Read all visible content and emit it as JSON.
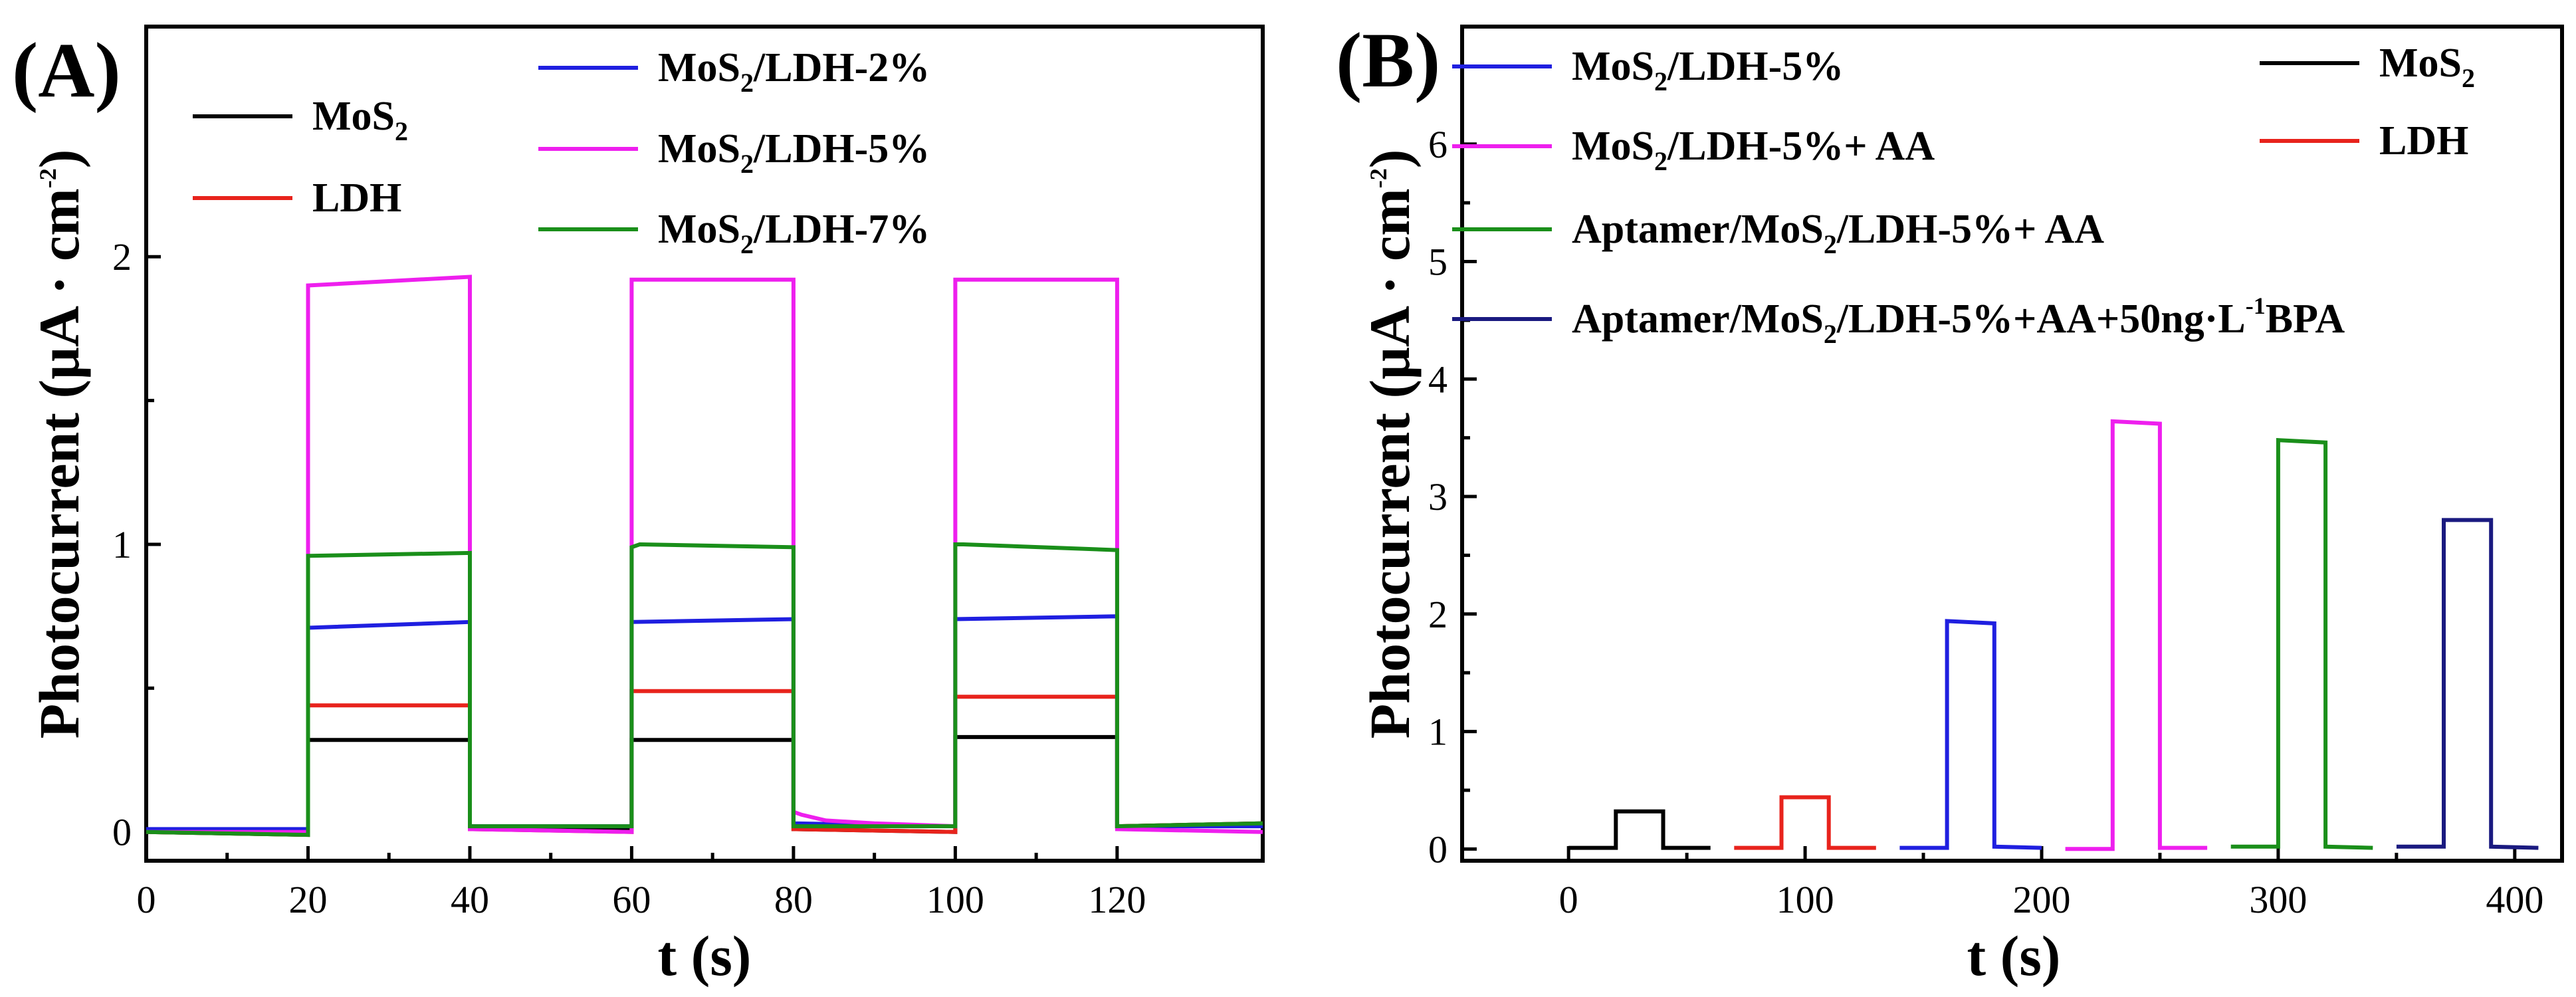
{
  "chart_data": [
    {
      "type": "line",
      "panel_label": "(A)",
      "xlabel": "t (s)",
      "ylabel": "Photocurrent (μA · cm",
      "ylabel_sup": "-2",
      "ylabel_close": ")",
      "xlim": [
        0,
        138
      ],
      "ylim": [
        -0.1,
        2.8
      ],
      "xticks": [
        0,
        20,
        40,
        60,
        80,
        100,
        120
      ],
      "yticks": [
        0,
        1,
        2
      ],
      "grid": false,
      "series": [
        {
          "name": "MoS2",
          "color": "#000000",
          "x": [
            0,
            20,
            20,
            40,
            40,
            60,
            60,
            80,
            80,
            100,
            100,
            120,
            120,
            138
          ],
          "y": [
            0,
            -0.01,
            0.32,
            0.32,
            0.02,
            0.01,
            0.32,
            0.32,
            0.01,
            0.0,
            0.33,
            0.33,
            0.02,
            0.03
          ]
        },
        {
          "name": "LDH",
          "color": "#e8231c",
          "x": [
            0,
            20,
            20,
            40,
            40,
            60,
            60,
            80,
            80,
            100,
            100,
            120,
            120,
            138
          ],
          "y": [
            0,
            -0.01,
            0.44,
            0.44,
            0.01,
            0.0,
            0.49,
            0.49,
            0.01,
            0.0,
            0.47,
            0.47,
            0.02,
            0.03
          ]
        },
        {
          "name": "MoS2/LDH-2%",
          "color": "#1f1fe0",
          "x": [
            0,
            20,
            20,
            40,
            40,
            60,
            60,
            80,
            80,
            100,
            100,
            120,
            120,
            138
          ],
          "y": [
            0.01,
            0.01,
            0.71,
            0.73,
            0.02,
            0.02,
            0.73,
            0.74,
            0.03,
            0.02,
            0.74,
            0.75,
            0.02,
            0.02
          ]
        },
        {
          "name": "MoS2/LDH-5%",
          "color": "#ee1fee",
          "x": [
            0,
            20,
            20,
            40,
            40,
            60,
            60,
            80,
            80,
            81,
            84,
            90,
            100,
            100,
            120,
            120,
            138
          ],
          "y": [
            0,
            0,
            1.9,
            1.93,
            0.01,
            0.0,
            1.92,
            1.92,
            0.07,
            0.06,
            0.04,
            0.03,
            0.02,
            1.92,
            1.92,
            0.01,
            0.0
          ]
        },
        {
          "name": "MoS2/LDH-7%",
          "color": "#1a8f1a",
          "x": [
            0,
            20,
            20,
            40,
            40,
            60,
            60,
            61,
            80,
            80,
            100,
            100,
            101,
            120,
            120,
            138
          ],
          "y": [
            0,
            -0.01,
            0.96,
            0.97,
            0.02,
            0.02,
            0.99,
            1.0,
            0.99,
            0.02,
            0.02,
            1.0,
            1.0,
            0.98,
            0.02,
            0.03
          ]
        }
      ],
      "legend": [
        {
          "text": "MoS",
          "sub": "2",
          "rest": "",
          "color": "#000000"
        },
        {
          "text": "LDH",
          "sub": "",
          "rest": "",
          "color": "#e8231c"
        },
        {
          "text": "MoS",
          "sub": "2",
          "rest": "/LDH-2%",
          "color": "#1f1fe0"
        },
        {
          "text": "MoS",
          "sub": "2",
          "rest": "/LDH-5%",
          "color": "#ee1fee"
        },
        {
          "text": "MoS",
          "sub": "2",
          "rest": "/LDH-7%",
          "color": "#1a8f1a"
        }
      ]
    },
    {
      "type": "line",
      "panel_label": "(B)",
      "xlabel": "t (s)",
      "ylabel": "Photocurrent (μA · cm",
      "ylabel_sup": "-2",
      "ylabel_close": ")",
      "xlim": [
        -45,
        420
      ],
      "ylim": [
        -0.1,
        7
      ],
      "xticks": [
        0,
        100,
        200,
        300,
        400
      ],
      "yticks": [
        0,
        1,
        2,
        3,
        4,
        5,
        6
      ],
      "grid": false,
      "series": [
        {
          "name": "MoS2",
          "color": "#000000",
          "x": [
            0,
            20,
            20,
            40,
            40,
            60
          ],
          "y": [
            0.01,
            0.01,
            0.32,
            0.32,
            0.01,
            0.01
          ]
        },
        {
          "name": "LDH",
          "color": "#e8231c",
          "x": [
            70,
            90,
            90,
            110,
            110,
            130
          ],
          "y": [
            0.01,
            0.01,
            0.44,
            0.44,
            0.01,
            0.01
          ]
        },
        {
          "name": "MoS2/LDH-5%",
          "color": "#1f1fe0",
          "x": [
            140,
            160,
            160,
            180,
            180,
            200
          ],
          "y": [
            0.01,
            0.01,
            1.94,
            1.92,
            0.02,
            0.01
          ]
        },
        {
          "name": "MoS2/LDH-5%+ AA",
          "color": "#ee1fee",
          "x": [
            210,
            230,
            230,
            250,
            250,
            270
          ],
          "y": [
            0.0,
            0.0,
            3.64,
            3.62,
            0.01,
            0.01
          ]
        },
        {
          "name": "Aptamer/MoS2/LDH-5%+ AA",
          "color": "#1a8f1a",
          "x": [
            280,
            300,
            300,
            320,
            320,
            340
          ],
          "y": [
            0.02,
            0.02,
            3.48,
            3.46,
            0.02,
            0.01
          ]
        },
        {
          "name": "Aptamer/MoS2/LDH-5%+AA+50ng·L-1BPA",
          "color": "#1a1a80",
          "x": [
            350,
            370,
            370,
            390,
            390,
            410
          ],
          "y": [
            0.02,
            0.02,
            2.8,
            2.8,
            0.02,
            0.01
          ]
        }
      ],
      "legend": [
        {
          "text": "MoS",
          "sub": "2",
          "rest": "/LDH-5%",
          "color": "#1f1fe0"
        },
        {
          "text": "MoS",
          "sub": "2",
          "rest": "/LDH-5%+ AA",
          "color": "#ee1fee"
        },
        {
          "text": "Aptamer/MoS",
          "sub": "2",
          "rest": "/LDH-5%+ AA",
          "color": "#1a8f1a"
        },
        {
          "text": "Aptamer/MoS",
          "sub": "2",
          "rest": "/LDH-5%+AA+50ng·L",
          "sup": "-1",
          "rest2": "BPA",
          "color": "#1a1a80"
        },
        {
          "text": "MoS",
          "sub": "2",
          "rest": "",
          "color": "#000000"
        },
        {
          "text": "LDH",
          "sub": "",
          "rest": "",
          "color": "#e8231c"
        }
      ]
    }
  ]
}
